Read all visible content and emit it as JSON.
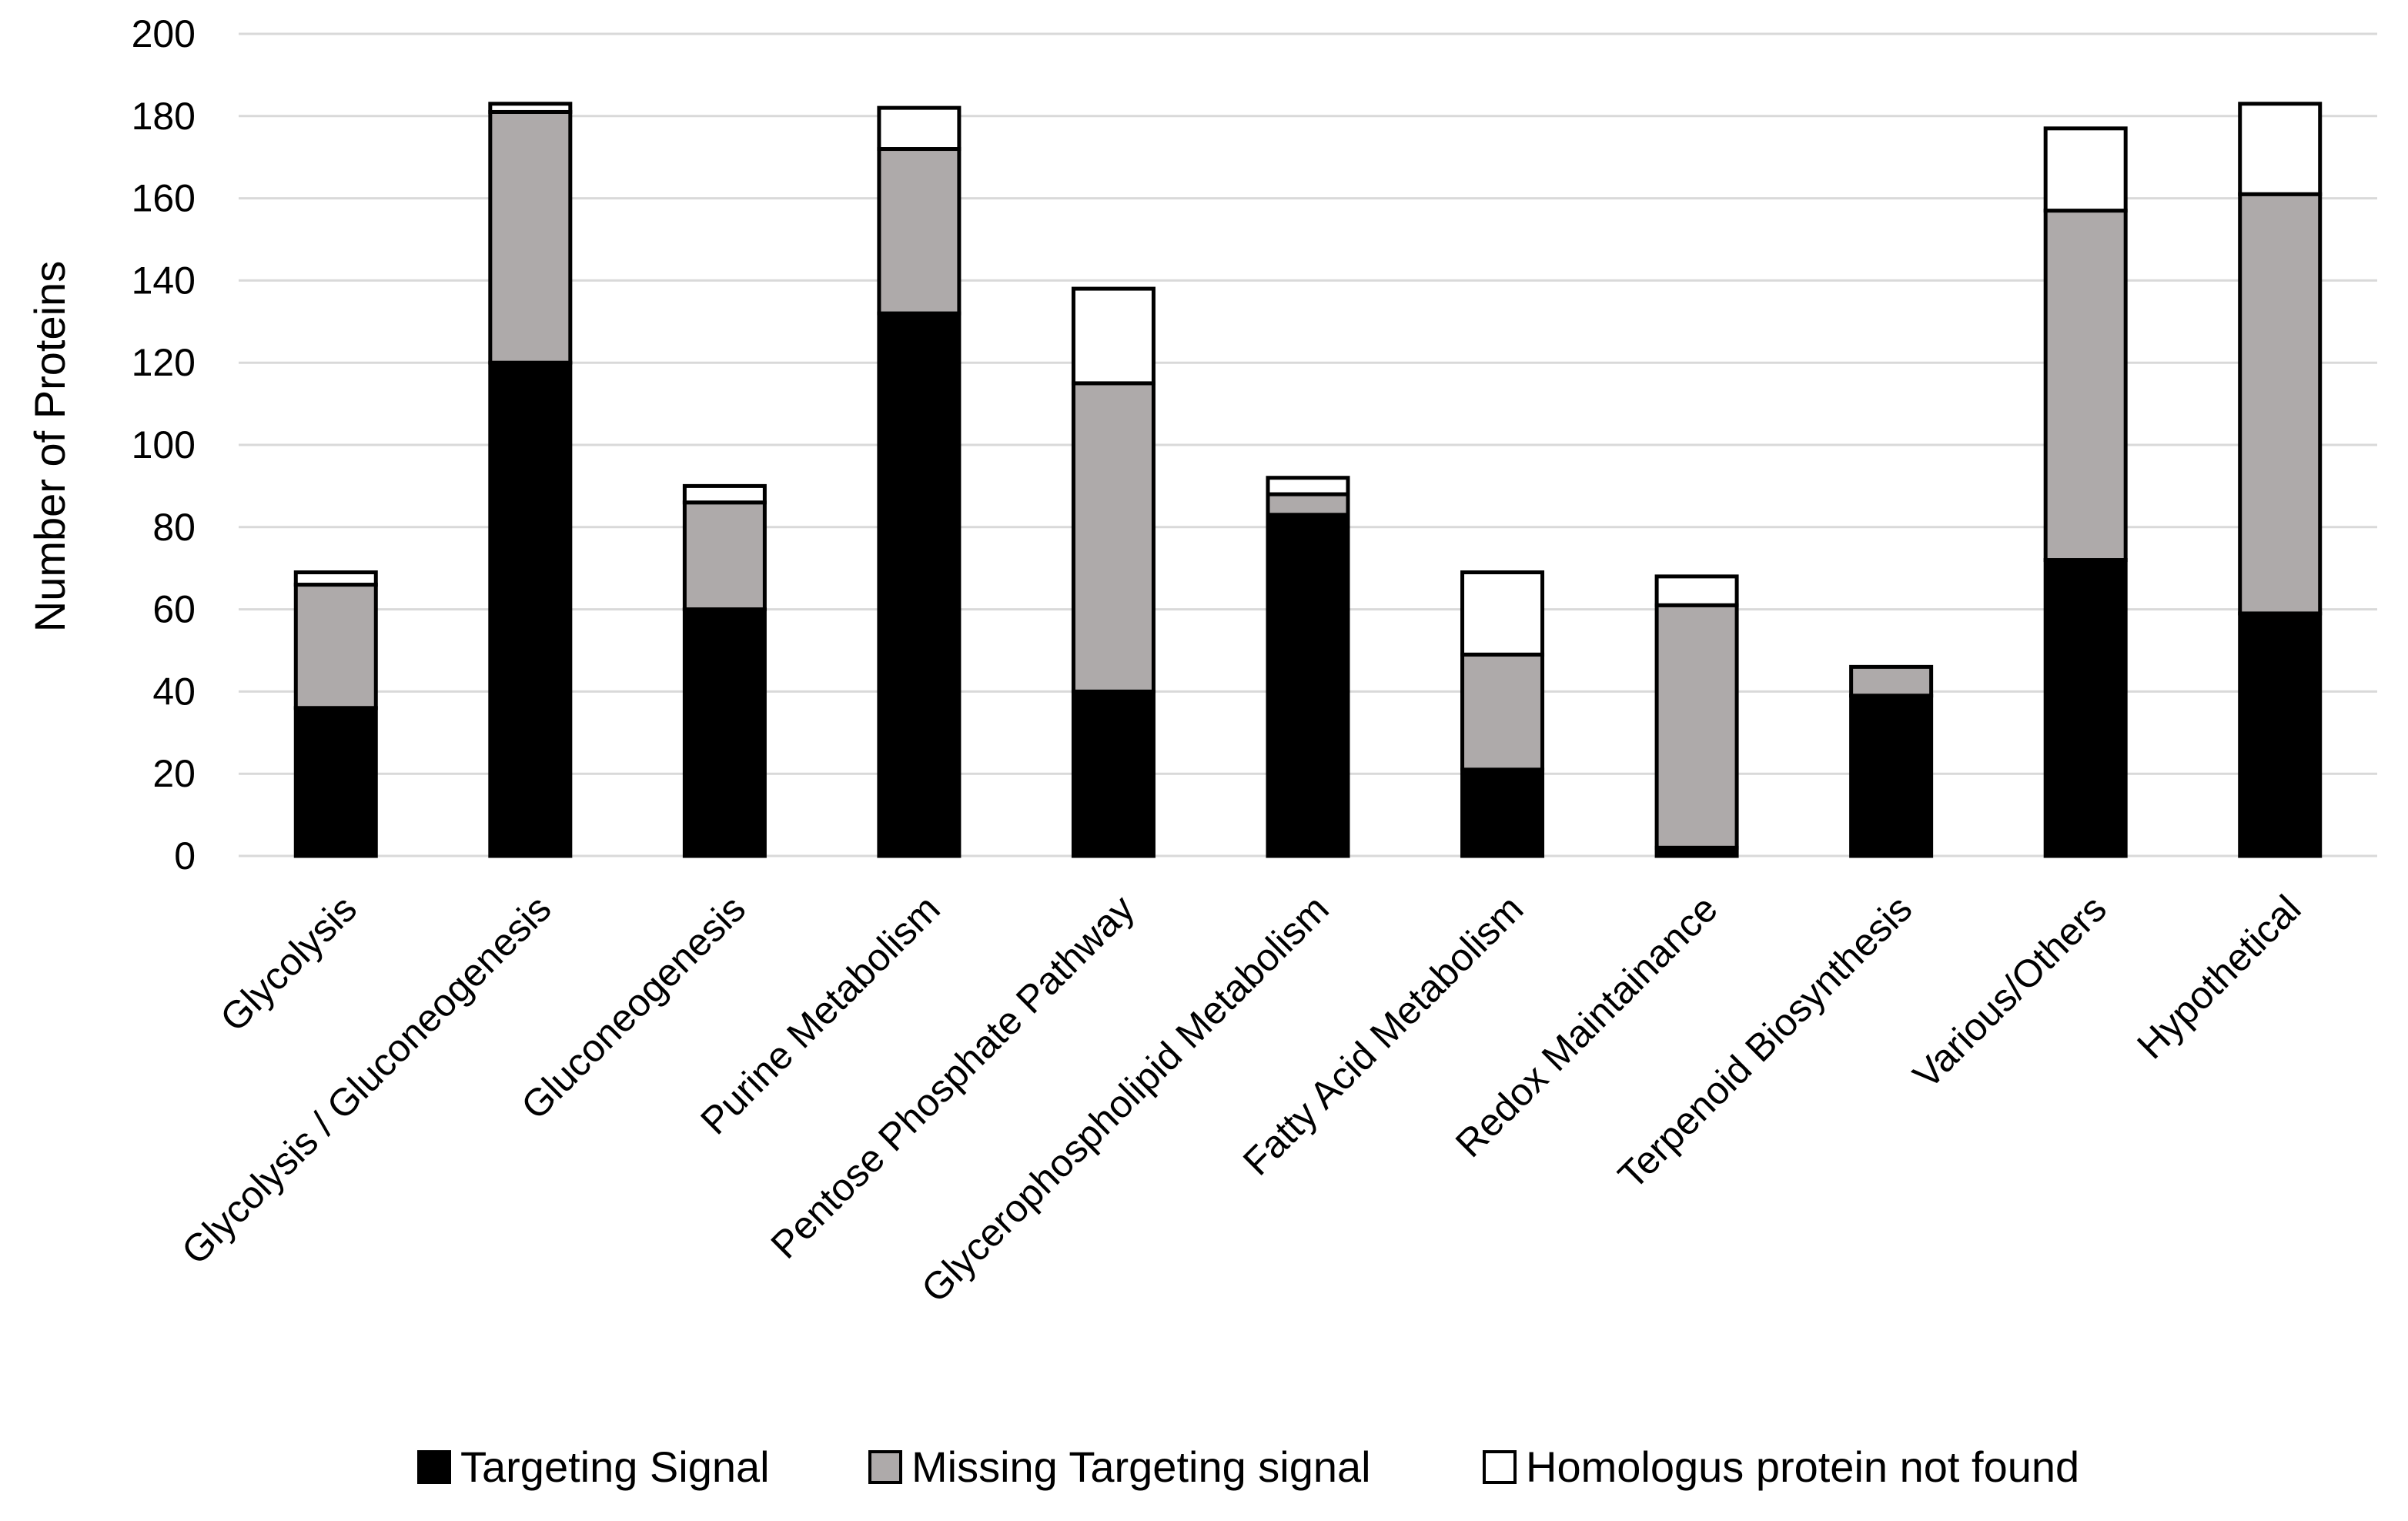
{
  "chart_data": {
    "type": "bar",
    "stacked": true,
    "title": "",
    "xlabel": "",
    "ylabel": "Number of Proteins",
    "ylim": [
      0,
      200
    ],
    "yticks": [
      0,
      20,
      40,
      60,
      80,
      100,
      120,
      140,
      160,
      180,
      200
    ],
    "grid": "horizontal",
    "legend_position": "bottom",
    "categories": [
      "Glycolysis",
      "Glycolysis / Gluconeogenesis",
      "Gluconeogenesis",
      "Purine Metabolism",
      "Pentose Phosphate Pathway",
      "Glycerophospholipid Metabolism",
      "Fatty Acid Metabolism",
      "Redox Maintainance",
      "Terpenoid Biosynthesis",
      "Various/Others",
      "Hypothetical"
    ],
    "series": [
      {
        "name": "Targeting Signal",
        "color": "#000000",
        "values": [
          36,
          120,
          60,
          132,
          40,
          83,
          21,
          2,
          39,
          72,
          59
        ]
      },
      {
        "name": "Missing Targeting signal",
        "color": "#aeaaaa",
        "values": [
          30,
          61,
          26,
          40,
          75,
          5,
          28,
          59,
          7,
          85,
          102
        ]
      },
      {
        "name": "Homologus protein not found",
        "color": "#ffffff",
        "values": [
          3,
          2,
          4,
          10,
          23,
          4,
          20,
          7,
          0,
          20,
          22
        ]
      }
    ]
  }
}
